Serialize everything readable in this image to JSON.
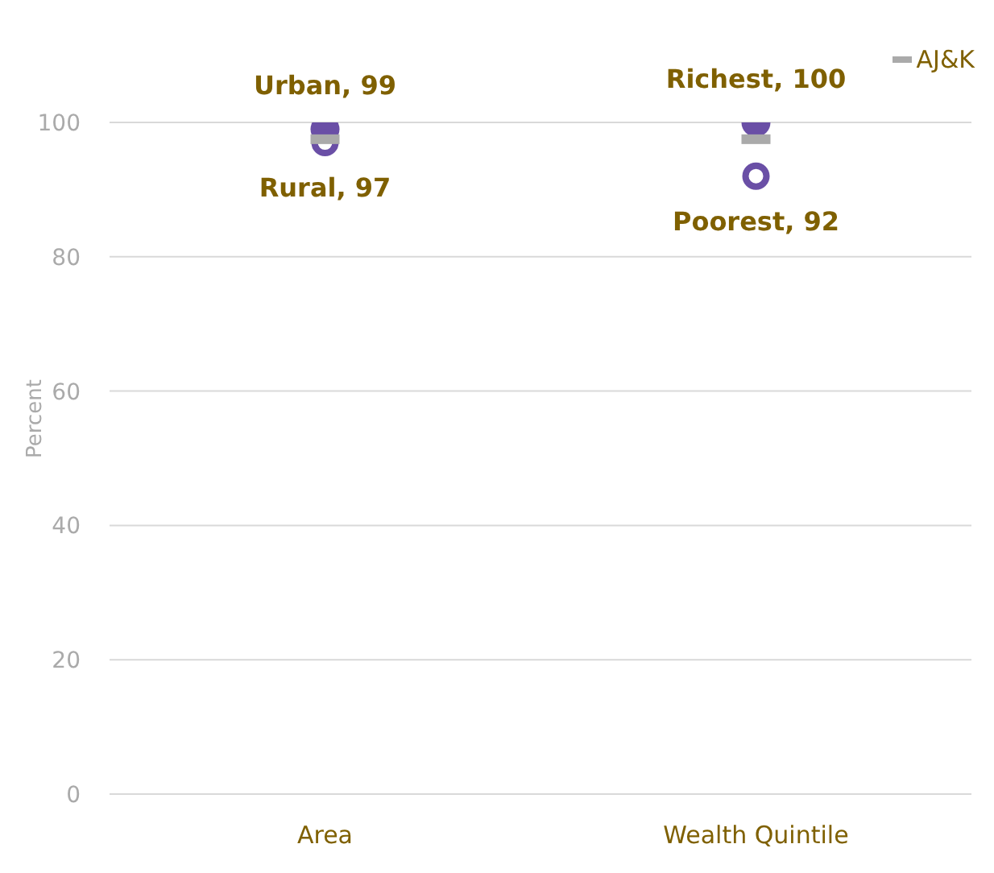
{
  "chart_data": {
    "type": "scatter",
    "ylabel": "Percent",
    "categories": [
      "Area",
      "Wealth Quintile"
    ],
    "series": [
      {
        "color": "#6a4fa6",
        "marker": "circle",
        "values": [
          99,
          100
        ],
        "value_labels": [
          "Urban, 99",
          "Richest, 100"
        ]
      },
      {
        "color": "#6a4fa6",
        "marker": "circle-open",
        "values": [
          97,
          92
        ],
        "value_labels": [
          "Rural, 97",
          "Poorest, 92"
        ]
      },
      {
        "name": "AJ&K",
        "color": "#aaaaaa",
        "marker": "square",
        "values": [
          97.5,
          97.5
        ]
      }
    ],
    "ylim": [
      0,
      100
    ],
    "yticks": [
      0,
      20,
      40,
      60,
      80,
      100
    ],
    "grid": "y",
    "legend": "top right"
  }
}
